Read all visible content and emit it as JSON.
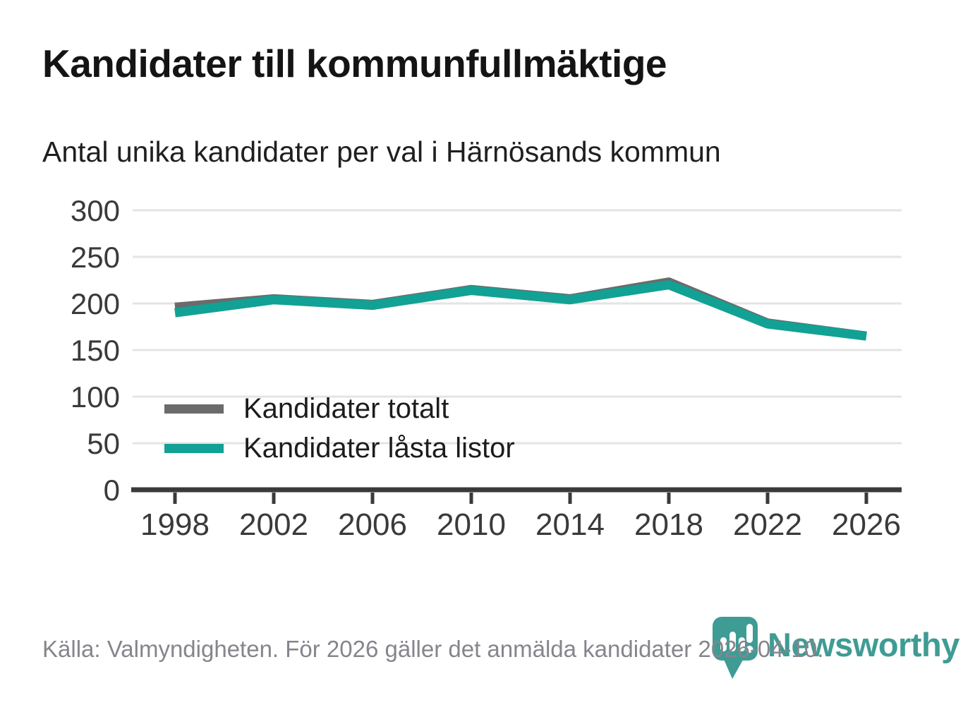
{
  "header": {
    "title": "Kandidater till kommunfullmäktige",
    "subtitle": "Antal unika kandidater per val i Härnösands kommun"
  },
  "chart_data": {
    "type": "line",
    "categories": [
      "1998",
      "2002",
      "2006",
      "2010",
      "2014",
      "2018",
      "2022",
      "2026"
    ],
    "series": [
      {
        "name": "Kandidater totalt",
        "color": "#6b6b6b",
        "values": [
          196,
          205,
          199,
          215,
          205,
          223,
          179,
          165
        ]
      },
      {
        "name": "Kandidater låsta listor",
        "color": "#12a195",
        "values": [
          190,
          204,
          198,
          214,
          204,
          220,
          178,
          165
        ]
      }
    ],
    "title": "Kandidater till kommunfullmäktige",
    "xlabel": "",
    "ylabel": "",
    "ylim": [
      0,
      300
    ],
    "ytick_step": 50,
    "grid": "horizontal",
    "legend_position": "inside-left-middle"
  },
  "footer": {
    "source": "Källa: Valmyndigheten. För 2026 gäller det anmälda kandidater 2026-04-10.",
    "brand": "Newsworthy"
  },
  "colors": {
    "accent_teal": "#12a195",
    "series_gray": "#6b6b6b",
    "axis": "#3a3a3a",
    "axis_text": "#3a3a3a",
    "grid": "#e4e4e4",
    "logo_teal": "#3f9c95",
    "footer_text": "#85858d"
  }
}
